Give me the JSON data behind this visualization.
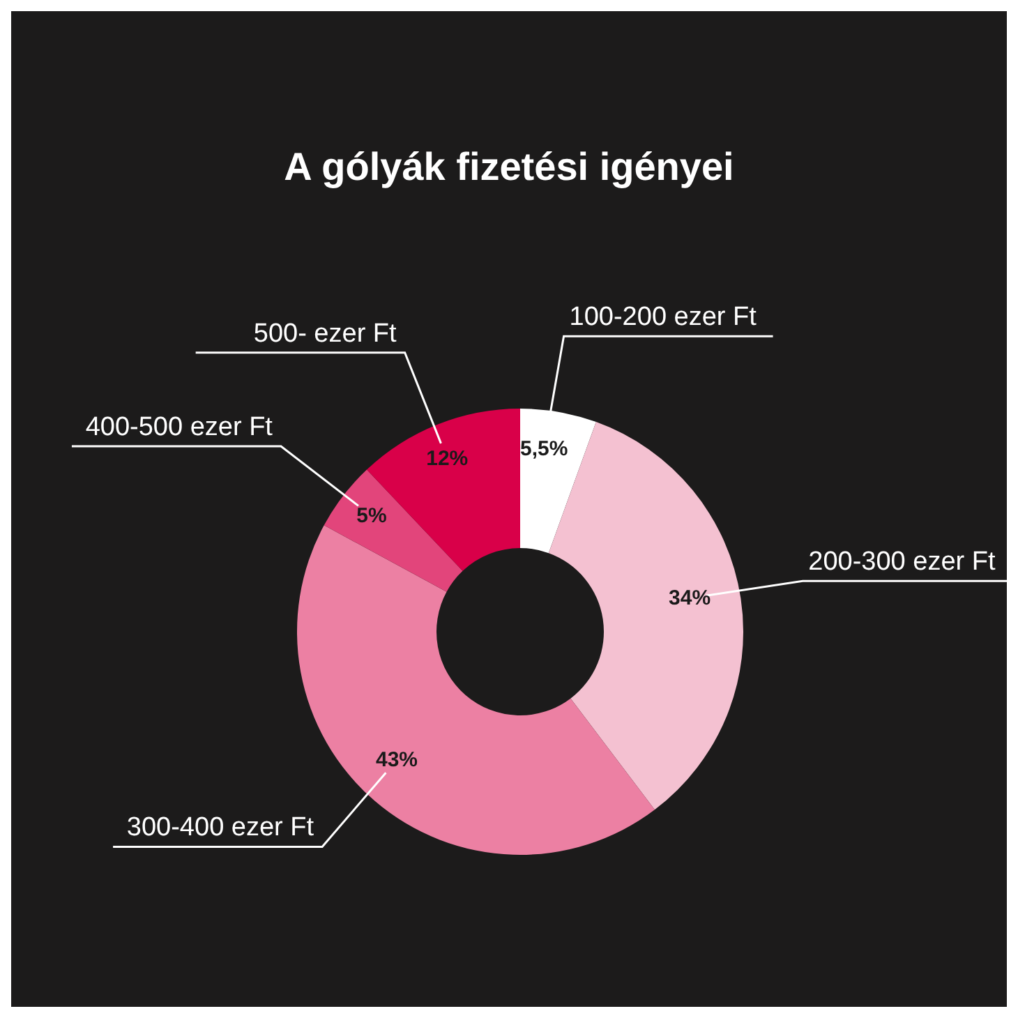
{
  "chart_data": {
    "type": "donut",
    "title": "A gólyák fizetési igényei",
    "categories": [
      "100-200 ezer Ft",
      "200-300 ezer Ft",
      "300-400 ezer Ft",
      "400-500 ezer Ft",
      "500- ezer Ft"
    ],
    "values": [
      5.5,
      34,
      43,
      5,
      12
    ],
    "colors": [
      "#ffffff",
      "#f4c1d1",
      "#ec80a3",
      "#e2457b",
      "#d90049"
    ],
    "value_labels": [
      "5,5%",
      "34%",
      "43%",
      "5%",
      "12%"
    ]
  }
}
